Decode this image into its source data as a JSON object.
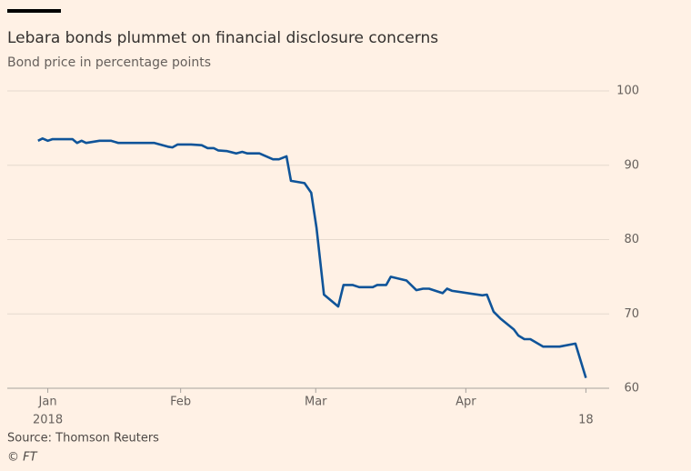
{
  "chart_data": {
    "type": "line",
    "title": "Lebara bonds plummet on financial disclosure concerns",
    "subtitle": "Bond price in percentage points",
    "source": "Source: Thomson Reuters",
    "credit": "© FT",
    "x": [
      0,
      0.6,
      1.3,
      1.9,
      4.6,
      5.2,
      5.8,
      6.4,
      8.2,
      9.7,
      10.7,
      15.5,
      17.3,
      17.9,
      18.6,
      20.4,
      21.8,
      22.6,
      23.4,
      24.0,
      25.2,
      26.4,
      27.2,
      27.9,
      29.5,
      31.3,
      32.1,
      33.1,
      33.7,
      35.5,
      36.4,
      37.1,
      38.1,
      40.0,
      40.7,
      41.9,
      42.8,
      44.6,
      45.2,
      46.4,
      47.0,
      49.1,
      50.4,
      51.3,
      52.1,
      53.9,
      54.5,
      55.2,
      59.2,
      59.8,
      60.7,
      61.6,
      63.4,
      64.0,
      64.8,
      65.6,
      67.3,
      69.5,
      71.6,
      73.0
    ],
    "series": [
      {
        "name": "Bond price",
        "color": "#0f5499",
        "values": [
          93.3,
          93.6,
          93.3,
          93.5,
          93.5,
          93.0,
          93.3,
          93.0,
          93.3,
          93.3,
          93.0,
          93.0,
          92.5,
          92.4,
          92.8,
          92.8,
          92.7,
          92.3,
          92.3,
          92.0,
          91.9,
          91.6,
          91.8,
          91.6,
          91.6,
          90.8,
          90.8,
          91.2,
          87.9,
          87.6,
          86.3,
          81.6,
          72.6,
          71.0,
          73.9,
          73.9,
          73.6,
          73.6,
          73.9,
          73.9,
          75.0,
          74.5,
          73.2,
          73.4,
          73.4,
          72.8,
          73.4,
          73.1,
          72.5,
          72.6,
          70.3,
          69.4,
          67.9,
          67.1,
          66.6,
          66.6,
          65.6,
          65.6,
          66.0,
          61.4
        ]
      }
    ],
    "xlim": [
      -4.1,
      76.1
    ],
    "xticks": [
      {
        "value": 1.3,
        "label": "Jan",
        "sublabel": "2018"
      },
      {
        "value": 19,
        "label": "Feb"
      },
      {
        "value": 37,
        "label": "Mar"
      },
      {
        "value": 57,
        "label": "Apr"
      },
      {
        "value": 73,
        "sublabel": "18"
      }
    ],
    "ylim": [
      60,
      100
    ],
    "yticks": [
      60,
      70,
      80,
      90,
      100
    ],
    "grid": true
  }
}
